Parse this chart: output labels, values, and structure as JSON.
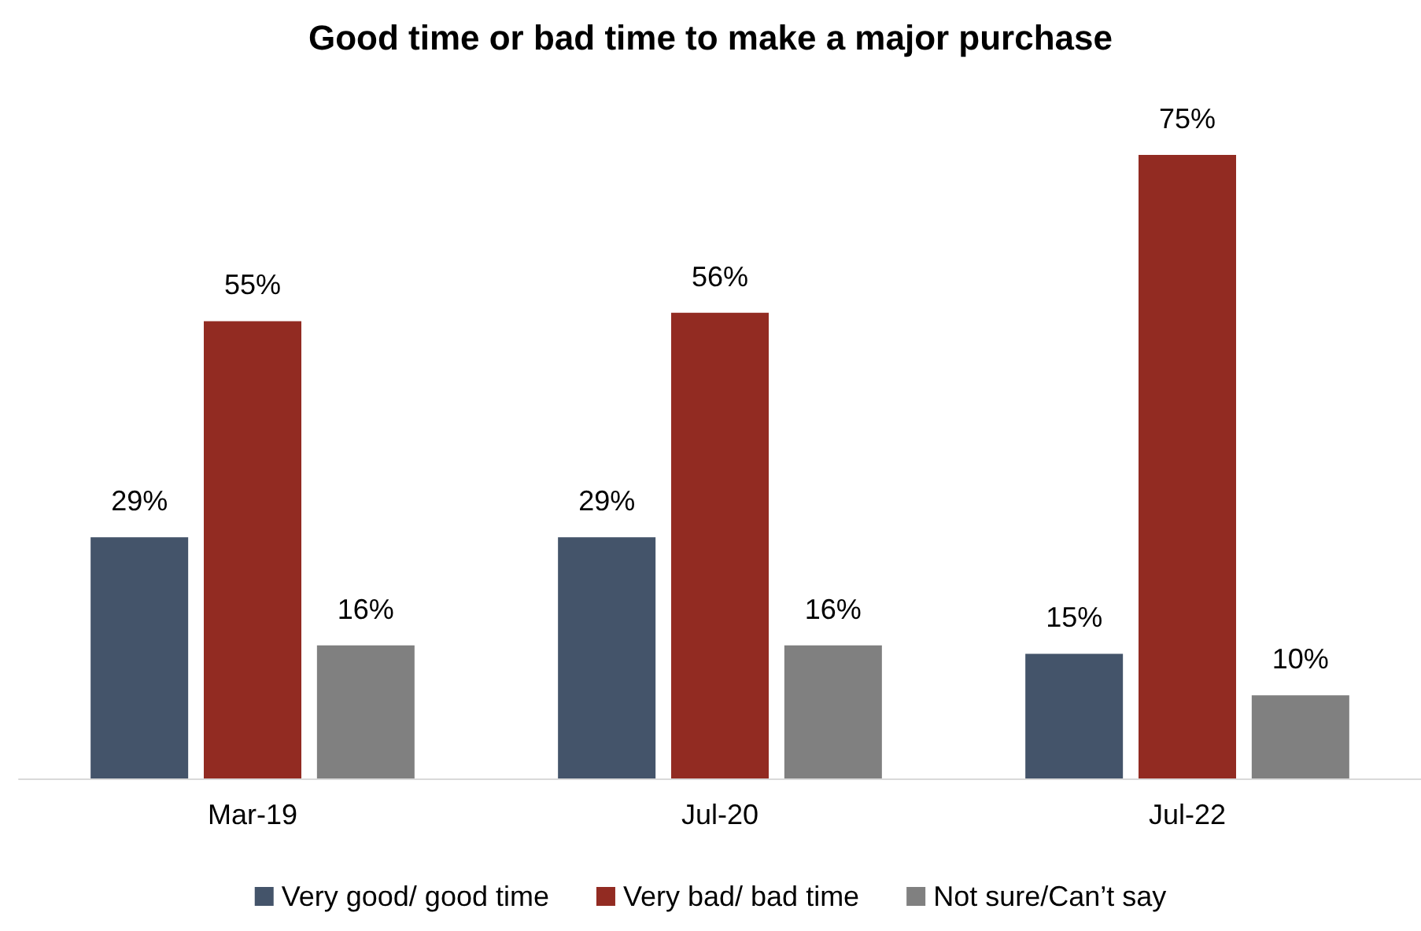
{
  "chart_data": {
    "type": "bar",
    "title": "Good time or bad time to make a major purchase",
    "categories": [
      "Mar-19",
      "Jul-20",
      "Jul-22"
    ],
    "series": [
      {
        "name": "Very good/ good time",
        "color": "#44546a",
        "values": [
          29,
          29,
          15
        ],
        "value_labels": [
          "29%",
          "29%",
          "15%"
        ]
      },
      {
        "name": "Very bad/ bad time",
        "color": "#922b22",
        "values": [
          55,
          56,
          75
        ],
        "value_labels": [
          "55%",
          "56%",
          "75%"
        ]
      },
      {
        "name": "Not sure/Can’t say",
        "color": "#808080",
        "values": [
          16,
          16,
          10
        ],
        "value_labels": [
          "16%",
          "16%",
          "10%"
        ]
      }
    ],
    "legend": "bottom"
  }
}
